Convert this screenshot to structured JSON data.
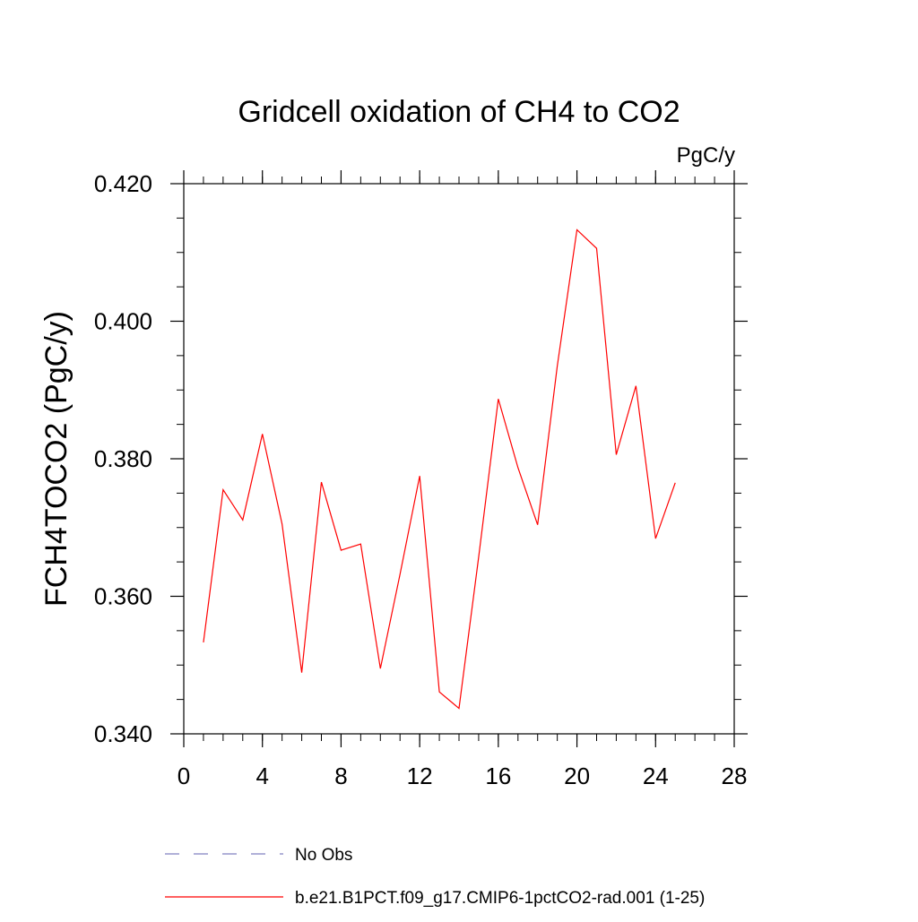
{
  "chart_data": {
    "type": "line",
    "title": "Gridcell oxidation of CH4 to CO2",
    "units": "PgC/y",
    "xlabel": "",
    "ylabel": "FCH4TOCO2  (PgC/y)",
    "xlim": [
      0,
      28
    ],
    "ylim": [
      0.34,
      0.42
    ],
    "x_ticks": [
      0,
      4,
      8,
      12,
      16,
      20,
      24,
      28
    ],
    "x_tick_labels": [
      "0",
      "4",
      "8",
      "12",
      "16",
      "20",
      "24",
      "28"
    ],
    "y_ticks": [
      0.34,
      0.36,
      0.38,
      0.4,
      0.42
    ],
    "y_tick_labels": [
      "0.340",
      "0.360",
      "0.380",
      "0.400",
      "0.420"
    ],
    "x_minor_step": 1,
    "y_minor_step": 0.005,
    "grid": false,
    "legend_position": "bottom",
    "series": [
      {
        "name": "b.e21.B1PCT.f09_g17.CMIP6-1pctCO2-rad.001 (1-25)",
        "color": "#ff0000",
        "style": "solid",
        "x": [
          1,
          2,
          3,
          4,
          5,
          6,
          7,
          8,
          9,
          10,
          11,
          12,
          13,
          14,
          15,
          16,
          17,
          18,
          19,
          20,
          21,
          22,
          23,
          24,
          25
        ],
        "values": [
          0.3533,
          0.3755,
          0.3711,
          0.3836,
          0.3705,
          0.3489,
          0.3766,
          0.3667,
          0.3676,
          0.3495,
          0.3632,
          0.3775,
          0.3461,
          0.3437,
          0.3657,
          0.3887,
          0.3787,
          0.3704,
          0.3935,
          0.4133,
          0.4106,
          0.3806,
          0.3906,
          0.3684,
          0.3765
        ]
      }
    ],
    "legend": [
      {
        "label": "No Obs",
        "color": "#8080c0",
        "style": "dashed"
      },
      {
        "label": "b.e21.B1PCT.f09_g17.CMIP6-1pctCO2-rad.001 (1-25)",
        "color": "#ff0000",
        "style": "solid"
      }
    ]
  }
}
